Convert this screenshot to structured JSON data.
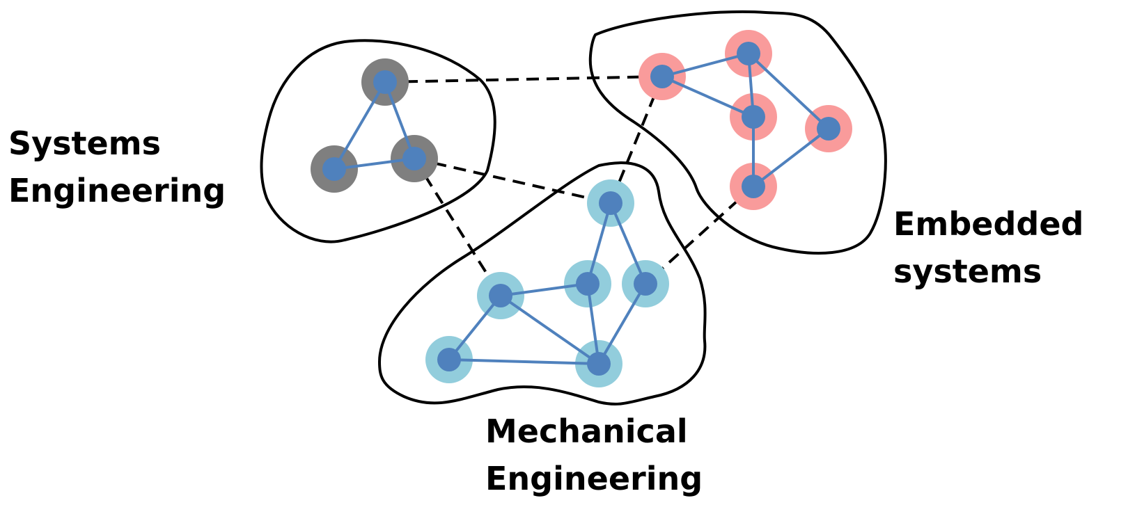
{
  "colors": {
    "outline": "#000000",
    "edge": "#4f81bd",
    "core": "#4f81bd",
    "systems_halo": "#7f7f7f",
    "embedded_halo": "#f99b9b",
    "mechanical_halo": "#92cddc"
  },
  "clusters": {
    "systems": {
      "line1": "Systems",
      "line2": "Engineering"
    },
    "embedded": {
      "line1": "Embedded",
      "line2": "systems"
    },
    "mechanical": {
      "line1": "Mechanical",
      "line2": "Engineering"
    }
  }
}
